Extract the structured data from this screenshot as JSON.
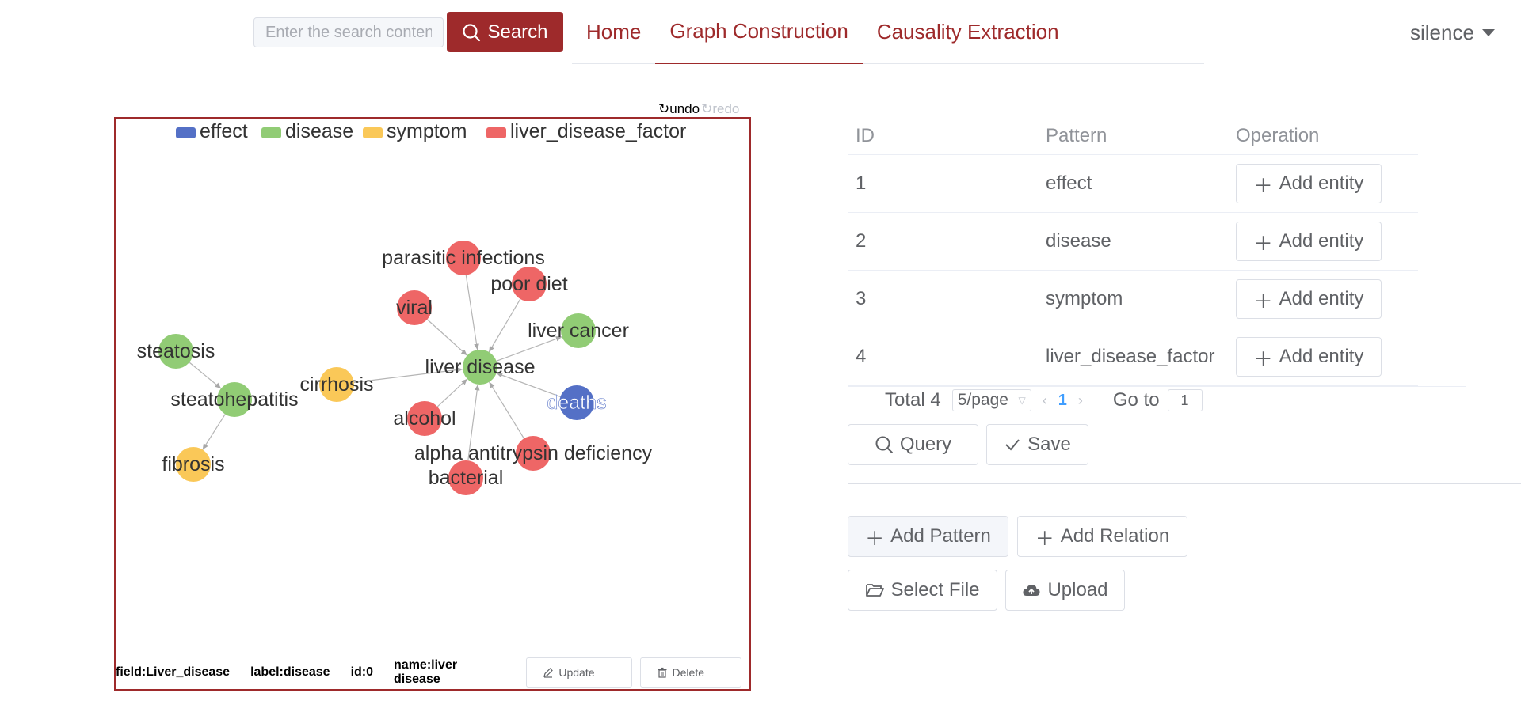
{
  "header": {
    "search_placeholder": "Enter the search content",
    "search_label": "Search",
    "nav": [
      {
        "label": "Home"
      },
      {
        "label": "Graph Construction"
      },
      {
        "label": "Causality Extraction"
      }
    ],
    "user": "silence"
  },
  "graph": {
    "undo_label": "undo",
    "redo_label": "redo",
    "legend": [
      {
        "label": "effect",
        "color": "#5470c6"
      },
      {
        "label": "disease",
        "color": "#91cc75"
      },
      {
        "label": "symptom",
        "color": "#fac858"
      },
      {
        "label": "liver_disease_factor",
        "color": "#ee6666"
      }
    ],
    "nodes": [
      {
        "label": "liver disease",
        "category": "disease"
      },
      {
        "label": "parasitic infections",
        "category": "liver_disease_factor"
      },
      {
        "label": "poor diet",
        "category": "liver_disease_factor"
      },
      {
        "label": "viral",
        "category": "liver_disease_factor"
      },
      {
        "label": "liver cancer",
        "category": "disease"
      },
      {
        "label": "steatosis",
        "category": "disease"
      },
      {
        "label": "steatohepatitis",
        "category": "disease"
      },
      {
        "label": "cirrhosis",
        "category": "symptom"
      },
      {
        "label": "deaths",
        "category": "effect"
      },
      {
        "label": "alcohol",
        "category": "liver_disease_factor"
      },
      {
        "label": "fibrosis",
        "category": "symptom"
      },
      {
        "label": "alpha antitrypsin deficiency",
        "category": "liver_disease_factor"
      },
      {
        "label": "bacterial",
        "category": "liver_disease_factor"
      }
    ],
    "edges": [
      {
        "source": "parasitic infections",
        "target": "liver disease"
      },
      {
        "source": "poor diet",
        "target": "liver disease"
      },
      {
        "source": "viral",
        "target": "liver disease"
      },
      {
        "source": "liver disease",
        "target": "liver cancer"
      },
      {
        "source": "cirrhosis",
        "target": "liver disease"
      },
      {
        "source": "deaths",
        "target": "liver disease"
      },
      {
        "source": "alcohol",
        "target": "liver disease"
      },
      {
        "source": "alpha antitrypsin deficiency",
        "target": "liver disease"
      },
      {
        "source": "bacterial",
        "target": "liver disease"
      },
      {
        "source": "steatosis",
        "target": "steatohepatitis"
      },
      {
        "source": "steatohepatitis",
        "target": "fibrosis"
      }
    ],
    "info": {
      "field": "field:Liver_disease",
      "label": "label:disease",
      "id": "id:0",
      "name": "name:liver disease"
    },
    "update_label": "Update",
    "delete_label": "Delete"
  },
  "table": {
    "headers": {
      "id": "ID",
      "pattern": "Pattern",
      "operation": "Operation"
    },
    "rows": [
      {
        "id": "1",
        "pattern": "effect",
        "action": "Add entity"
      },
      {
        "id": "2",
        "pattern": "disease",
        "action": "Add entity"
      },
      {
        "id": "3",
        "pattern": "symptom",
        "action": "Add entity"
      },
      {
        "id": "4",
        "pattern": "liver_disease_factor",
        "action": "Add entity"
      }
    ]
  },
  "pagination": {
    "total": "Total 4",
    "page_size": "5/page",
    "current_page": "1",
    "goto_label": "Go to",
    "goto_value": "1"
  },
  "actions": {
    "query": "Query",
    "save": "Save",
    "add_pattern": "Add Pattern",
    "add_relation": "Add Relation",
    "select_file": "Select File",
    "upload": "Upload"
  }
}
